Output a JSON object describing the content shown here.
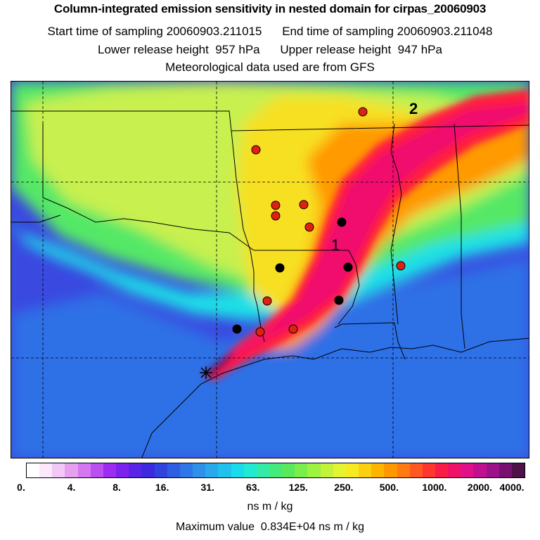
{
  "header": {
    "title": "Column-integrated emission sensitivity in nested domain for cirpas_20060903",
    "start_label": "Start time of sampling",
    "start_value": "20060903.211015",
    "end_label": "End time of sampling",
    "end_value": "20060903.211048",
    "lower_label": "Lower release height",
    "lower_value": "957 hPa",
    "upper_label": "Upper release height",
    "upper_value": "947 hPa",
    "met_note": "Meteorological data used are from GFS"
  },
  "map": {
    "labels": {
      "one": "1",
      "two": "2"
    },
    "colors": {
      "background": "#3a49e0",
      "ocean": "#2f6fe6",
      "cyan_band": "#1fe0e6",
      "green": "#55e866",
      "yellow_green": "#c8f050",
      "yellow": "#f7e020",
      "orange": "#ff9a00",
      "red": "#ff1a40",
      "magenta": "#f0106e",
      "dark_plume": "#7a1050",
      "red_marker": "#e02010",
      "black_marker": "#000000"
    }
  },
  "colorbar": {
    "tick_labels": [
      "0.",
      "4.",
      "8.",
      "16.",
      "31.",
      "63.",
      "125.",
      "250.",
      "500.",
      "1000.",
      "2000.",
      "4000."
    ],
    "colors": [
      "#ffffff",
      "#fbe8fb",
      "#f4c8f6",
      "#e79ff0",
      "#d477f0",
      "#bb4ef0",
      "#9e2cf0",
      "#7c22ee",
      "#5a24e6",
      "#3d2ae0",
      "#2f45dd",
      "#2f5ee3",
      "#2f77e8",
      "#2f90ea",
      "#2aa8ec",
      "#20c2ec",
      "#18dcea",
      "#22ead2",
      "#33eaa6",
      "#44ea7a",
      "#5ae85c",
      "#7aee4a",
      "#9ef240",
      "#c2f33a",
      "#e4f430",
      "#f8ea20",
      "#fcd010",
      "#ffb400",
      "#ff9800",
      "#ff7a10",
      "#ff5820",
      "#ff3630",
      "#f81c46",
      "#f01068",
      "#e0108a",
      "#c01090",
      "#9c1088",
      "#781070",
      "#501048"
    ],
    "units": "ns m / kg",
    "max_label": "Maximum value",
    "max_value": "0.834E+04 ns m / kg"
  }
}
